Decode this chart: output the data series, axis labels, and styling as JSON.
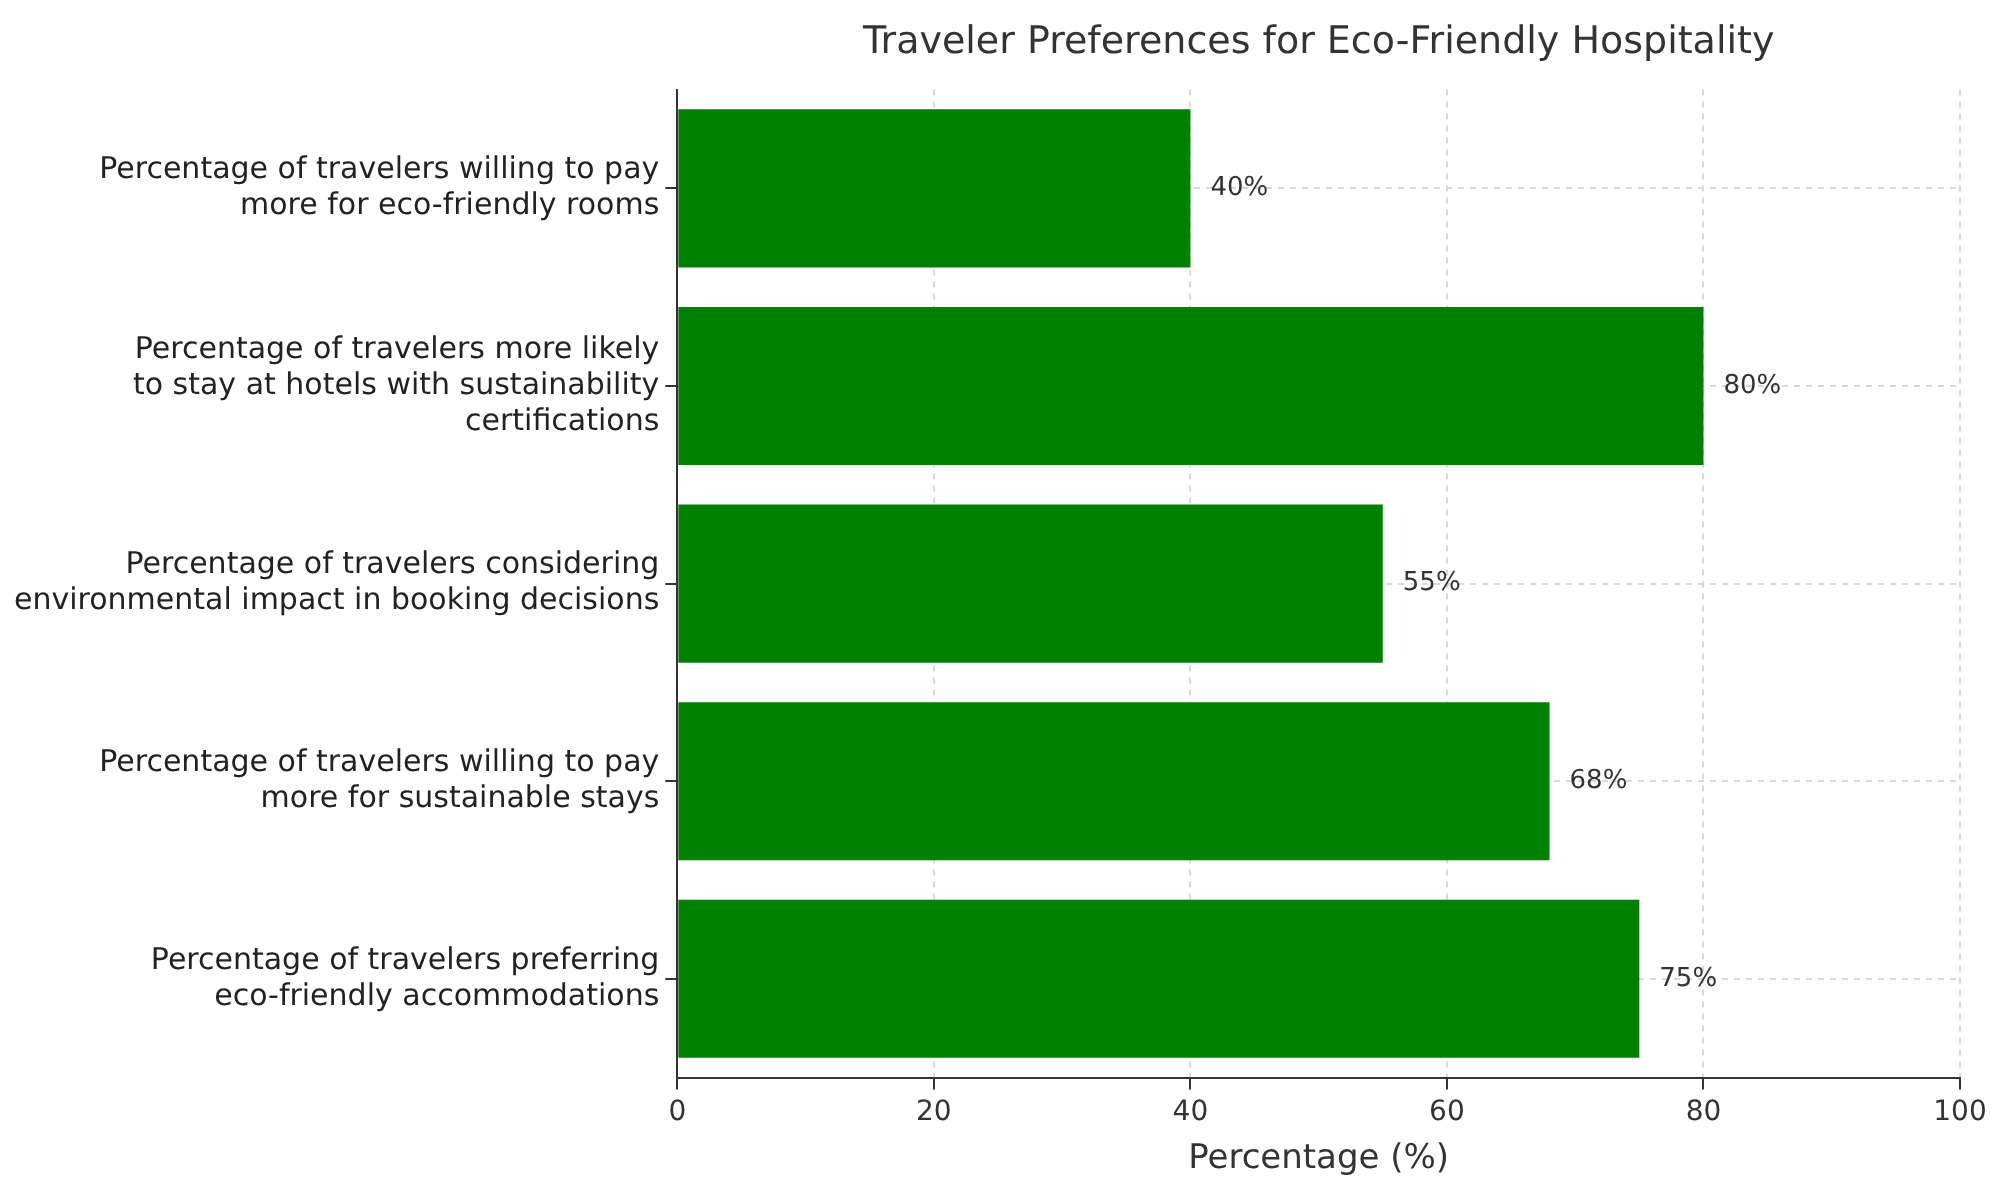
{
  "chart_data": {
    "type": "bar",
    "orientation": "horizontal",
    "title": "Traveler Preferences for Eco-Friendly Hospitality",
    "xlabel": "Percentage (%)",
    "categories": [
      "Percentage of travelers willing to pay\nmore for eco-friendly rooms",
      "Percentage of travelers more likely\nto stay at hotels with sustainability\ncertifications",
      "Percentage of travelers considering\nenvironmental impact in booking decisions",
      "Percentage of travelers willing to pay\nmore for sustainable stays",
      "Percentage of travelers preferring\neco-friendly accommodations"
    ],
    "values": [
      40,
      80,
      55,
      68,
      75
    ],
    "value_labels": [
      "40%",
      "80%",
      "55%",
      "68%",
      "75%"
    ],
    "color": "#008000",
    "xlim": [
      0,
      100
    ],
    "xticks": [
      0,
      20,
      40,
      60,
      80,
      100
    ],
    "grid": true
  }
}
